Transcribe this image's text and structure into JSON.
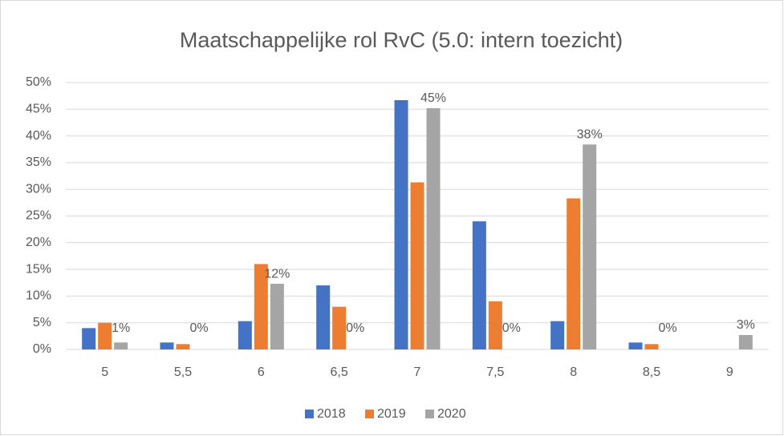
{
  "chart_data": {
    "type": "bar",
    "title": "Maatschappelijke rol RvC (5.0: intern toezicht)",
    "categories": [
      "5",
      "5,5",
      "6",
      "6,5",
      "7",
      "7,5",
      "8",
      "8,5",
      "9"
    ],
    "series": [
      {
        "name": "2018",
        "color": "#4472c4",
        "values": [
          4,
          1.3,
          5.3,
          12,
          46.7,
          24,
          5.3,
          1.3,
          0
        ]
      },
      {
        "name": "2019",
        "color": "#ed7d31",
        "values": [
          5,
          1,
          16,
          8,
          31.3,
          9,
          28.3,
          1,
          0
        ]
      },
      {
        "name": "2020",
        "color": "#a5a5a5",
        "values": [
          1.3,
          0,
          12.3,
          0,
          45.2,
          0,
          38.4,
          0,
          2.7
        ],
        "value_labels": [
          "1%",
          "0%",
          "12%",
          "0%",
          "45%",
          "0%",
          "38%",
          "0%",
          "3%"
        ]
      }
    ],
    "ylim": [
      0,
      50
    ],
    "yticks": [
      {
        "value": 0,
        "label": "0%"
      },
      {
        "value": 5,
        "label": "5%"
      },
      {
        "value": 10,
        "label": "10%"
      },
      {
        "value": 15,
        "label": "15%"
      },
      {
        "value": 20,
        "label": "20%"
      },
      {
        "value": 25,
        "label": "25%"
      },
      {
        "value": 30,
        "label": "30%"
      },
      {
        "value": 35,
        "label": "35%"
      },
      {
        "value": 40,
        "label": "40%"
      },
      {
        "value": 45,
        "label": "45%"
      },
      {
        "value": 50,
        "label": "50%"
      }
    ],
    "grid": true,
    "legend": "bottom"
  }
}
